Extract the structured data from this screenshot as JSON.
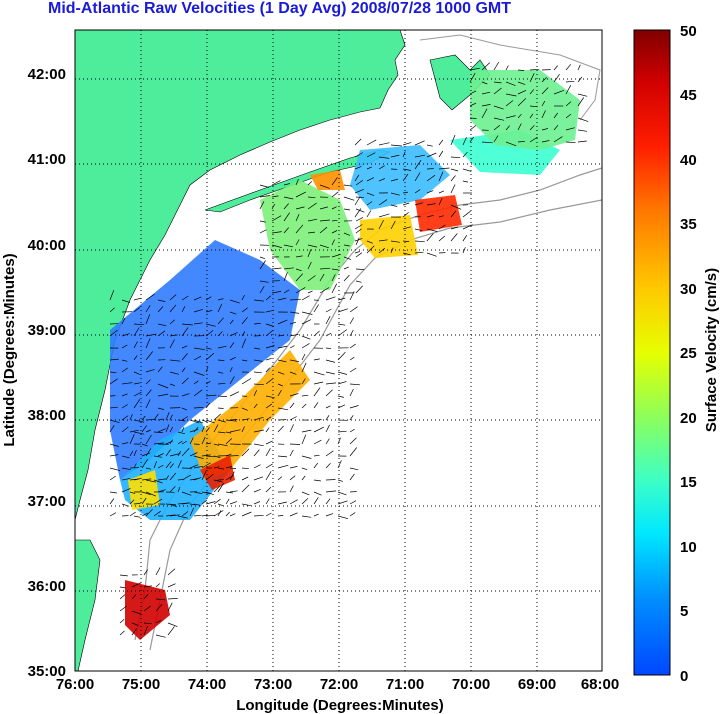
{
  "title": "Mid-Atlantic Raw Velocities (1 Day Avg) 2008/07/28 1000 GMT",
  "axes": {
    "x_label": "Longitude (Degrees:Minutes)",
    "y_label": "Latitude (Degrees:Minutes)",
    "x_ticks": [
      "76:00",
      "75:00",
      "74:00",
      "73:00",
      "72:00",
      "71:00",
      "70:00",
      "69:00",
      "68:00"
    ],
    "y_ticks": [
      "42:00",
      "41:00",
      "40:00",
      "39:00",
      "38:00",
      "37:00",
      "36:00",
      "35:00"
    ]
  },
  "colorbar": {
    "label": "Surface Velocity (cm/s)",
    "ticks": [
      "50",
      "45",
      "40",
      "35",
      "30",
      "25",
      "20",
      "15",
      "10",
      "5",
      "0"
    ]
  },
  "colors": {
    "land": "#4ded9c",
    "title": "#1a1ad8",
    "grid": "#000000",
    "isobath": "#999999"
  }
}
